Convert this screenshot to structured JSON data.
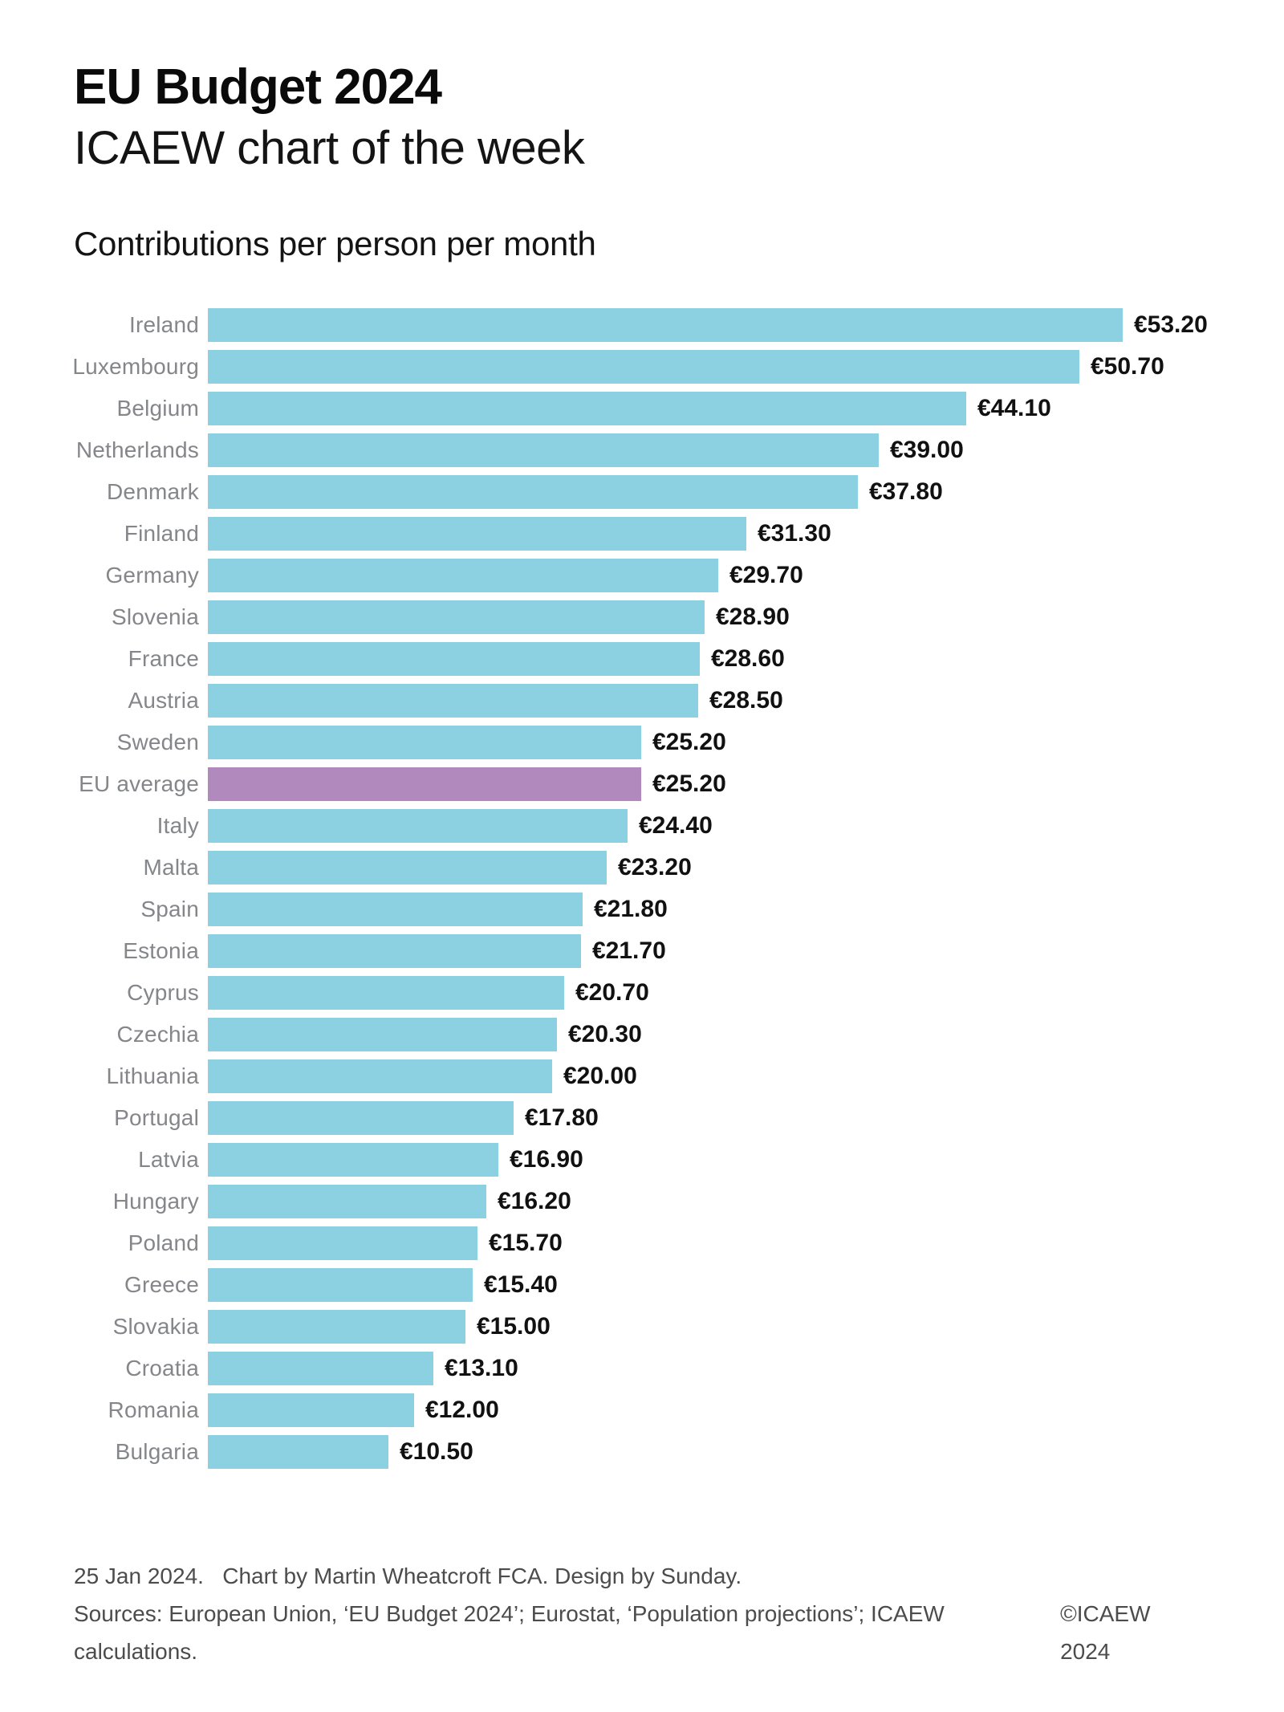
{
  "header": {
    "title": "EU Budget 2024",
    "subtitle": "ICAEW chart of the week"
  },
  "chart_title": "Contributions per person per month",
  "chart_data": {
    "type": "bar",
    "orientation": "horizontal",
    "title": "Contributions per person per month",
    "xlabel": "",
    "ylabel": "",
    "xlim": [
      0,
      53.2
    ],
    "grid": false,
    "legend": false,
    "unit": "EUR per person per month",
    "categories": [
      "Ireland",
      "Luxembourg",
      "Belgium",
      "Netherlands",
      "Denmark",
      "Finland",
      "Germany",
      "Slovenia",
      "France",
      "Austria",
      "Sweden",
      "EU average",
      "Italy",
      "Malta",
      "Spain",
      "Estonia",
      "Cyprus",
      "Czechia",
      "Lithuania",
      "Portugal",
      "Latvia",
      "Hungary",
      "Poland",
      "Greece",
      "Slovakia",
      "Croatia",
      "Romania",
      "Bulgaria"
    ],
    "values": [
      53.2,
      50.7,
      44.1,
      39.0,
      37.8,
      31.3,
      29.7,
      28.9,
      28.6,
      28.5,
      25.2,
      25.2,
      24.4,
      23.2,
      21.8,
      21.7,
      20.7,
      20.3,
      20.0,
      17.8,
      16.9,
      16.2,
      15.7,
      15.4,
      15.0,
      13.1,
      12.0,
      10.5
    ],
    "value_labels": [
      "€53.20",
      "€50.70",
      "€44.10",
      "€39.00",
      "€37.80",
      "€31.30",
      "€29.70",
      "€28.90",
      "€28.60",
      "€28.50",
      "€25.20",
      "€25.20",
      "€24.40",
      "€23.20",
      "€21.80",
      "€21.70",
      "€20.70",
      "€20.30",
      "€20.00",
      "€17.80",
      "€16.90",
      "€16.20",
      "€15.70",
      "€15.40",
      "€15.00",
      "€13.10",
      "€12.00",
      "€10.50"
    ],
    "highlight_category": "EU average",
    "colors": {
      "bar": "#8CD1E2",
      "highlight": "#B189BC",
      "category_label": "#85868A",
      "value_label": "#111111"
    }
  },
  "footer": {
    "line1": "25 Jan 2024.   Chart by Martin Wheatcroft FCA. Design by Sunday.",
    "line2": "Sources: European Union, ‘EU Budget 2024’; Eurostat, ‘Population projections’; ICAEW calculations.",
    "copyright": "©ICAEW 2024"
  }
}
